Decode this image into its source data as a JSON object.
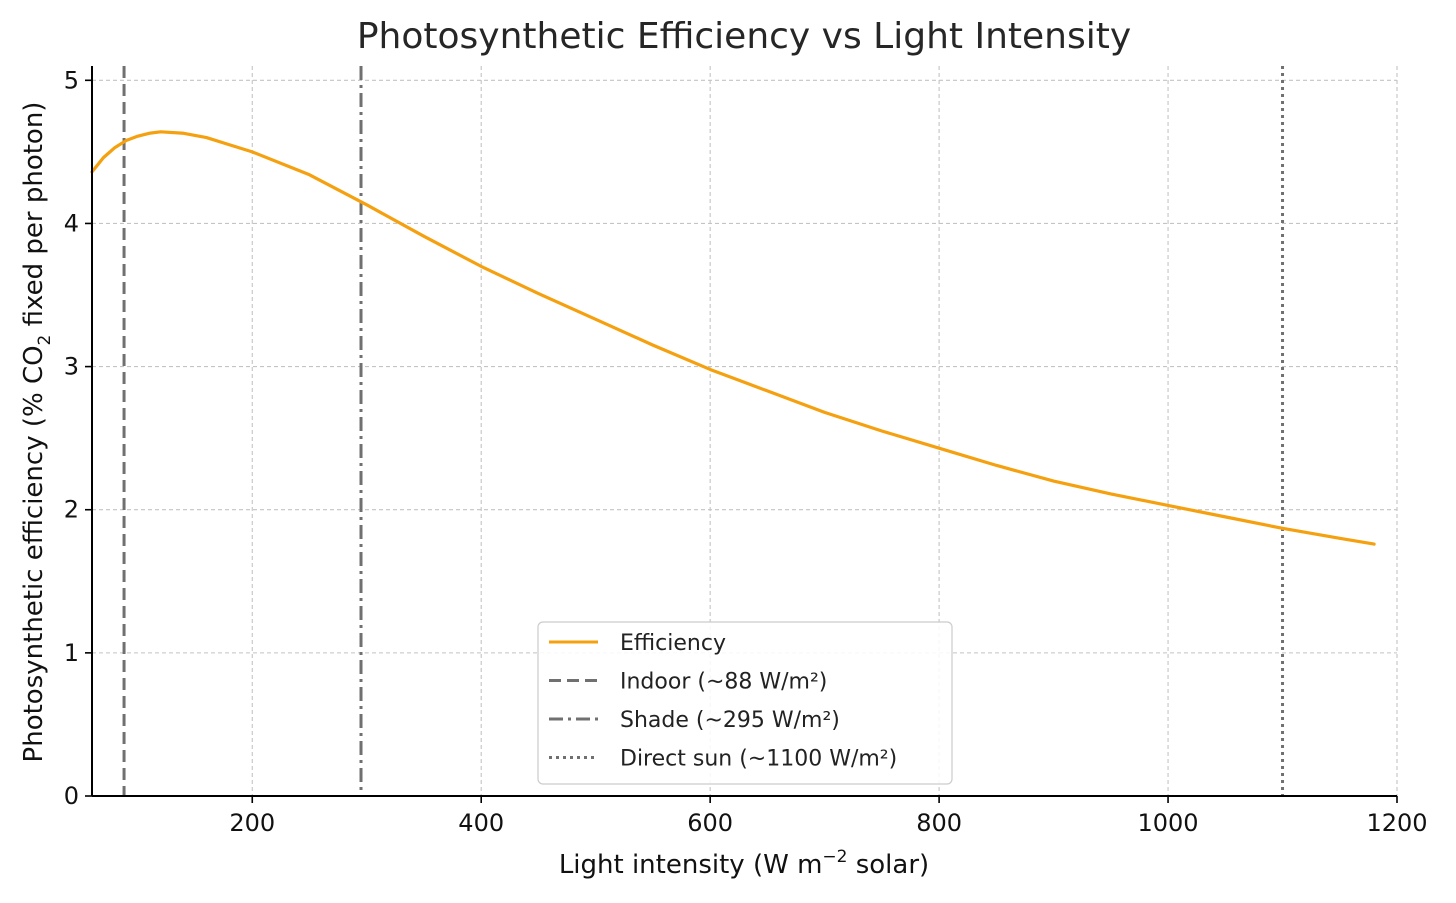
{
  "chart_data": {
    "type": "line",
    "title": "Photosynthetic Efficiency vs Light Intensity",
    "xlabel": {
      "prefix": "Light intensity (W m",
      "superscript": "−2",
      "suffix": " solar)"
    },
    "ylabel": {
      "prefix": "Photosynthetic efficiency (% CO",
      "subscript": "2",
      "suffix": " fixed per photon)"
    },
    "xlim": [
      60,
      1200
    ],
    "ylim": [
      0,
      5.1
    ],
    "xticks": [
      200,
      400,
      600,
      800,
      1000,
      1200
    ],
    "xtick_labels": [
      "200",
      "400",
      "600",
      "800",
      "1000",
      "1200"
    ],
    "yticks": [
      0,
      1,
      2,
      3,
      4,
      5
    ],
    "ytick_labels": [
      "0",
      "1",
      "2",
      "3",
      "4",
      "5"
    ],
    "grid": true,
    "legend_position": "bottom-center",
    "series": [
      {
        "name": "Efficiency",
        "color": "#f5a00f",
        "style": "solid",
        "x": [
          60,
          70,
          80,
          90,
          100,
          110,
          120,
          140,
          160,
          180,
          200,
          250,
          300,
          350,
          400,
          450,
          500,
          550,
          600,
          650,
          700,
          750,
          800,
          850,
          900,
          950,
          1000,
          1050,
          1100,
          1150,
          1180
        ],
        "y": [
          4.36,
          4.46,
          4.53,
          4.58,
          4.61,
          4.63,
          4.64,
          4.63,
          4.6,
          4.55,
          4.5,
          4.34,
          4.13,
          3.91,
          3.7,
          3.51,
          3.33,
          3.15,
          2.98,
          2.83,
          2.68,
          2.55,
          2.43,
          2.31,
          2.2,
          2.11,
          2.03,
          1.95,
          1.87,
          1.8,
          1.76
        ]
      }
    ],
    "reference_lines": [
      {
        "name": "Indoor (~88 W/m²)",
        "x": 88,
        "color": "#707070",
        "style": "dashed"
      },
      {
        "name": "Shade (~295 W/m²)",
        "x": 295,
        "color": "#707070",
        "style": "dashdot"
      },
      {
        "name": "Direct sun (~1100 W/m²)",
        "x": 1100,
        "color": "#707070",
        "style": "dotted"
      }
    ]
  }
}
